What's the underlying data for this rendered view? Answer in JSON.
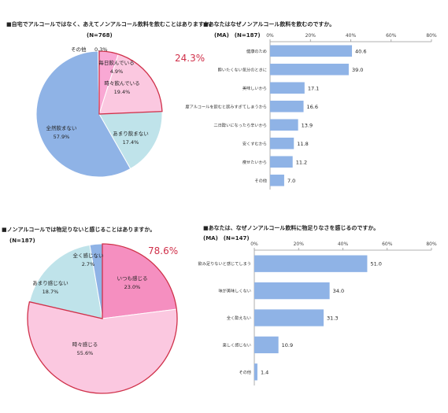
{
  "chart_data": [
    {
      "type": "pie",
      "title": "■自宅でアルコールではなく、あえてノンアルコール飲料を飲むことはありますか。",
      "n_label": "(N=768)",
      "highlight_label": "24.3%",
      "slices": [
        {
          "label": "毎日飲んでいる",
          "value": 4.9,
          "value_label": "4.9%",
          "color": "#f9a8d4"
        },
        {
          "label": "時々飲んでいる",
          "value": 19.4,
          "value_label": "19.4%",
          "color": "#fbc8e0"
        },
        {
          "label": "あまり飲まない",
          "value": 17.4,
          "value_label": "17.4%",
          "color": "#bfe3ea"
        },
        {
          "label": "全然飲まない",
          "value": 57.9,
          "value_label": "57.9%",
          "color": "#8fb3e6"
        },
        {
          "label": "その他",
          "value": 0.3,
          "value_label": "0.3%",
          "color": "#a8a8d8"
        }
      ]
    },
    {
      "type": "bar",
      "orientation": "horizontal",
      "title": "■あなたはなぜノンアルコール飲料を飲むのですか。",
      "subtitle": "(MA)　(N=187)",
      "xlim": [
        0,
        80
      ],
      "ticks": [
        "0%",
        "20%",
        "40%",
        "60%",
        "80%"
      ],
      "tick_values": [
        0,
        20,
        40,
        60,
        80
      ],
      "categories": [
        "健康のため",
        "酔いたくない気分のときに",
        "美味しいから",
        "度アルコールを飲むと飲みすぎてしまうから",
        "二日酔いになったら辛いから",
        "安くすむから",
        "痩せたいから",
        "その他"
      ],
      "values": [
        40.6,
        39.0,
        17.1,
        16.6,
        13.9,
        11.8,
        11.2,
        7.0
      ],
      "value_labels": [
        "40.6",
        "39.0",
        "17.1",
        "16.6",
        "13.9",
        "11.8",
        "11.2",
        "7.0"
      ],
      "color": "#8fb3e6"
    },
    {
      "type": "pie",
      "title": "■ノンアルコールでは物足りないと感じることはありますか。",
      "n_label": "(N=187)",
      "highlight_label": "78.6%",
      "slices": [
        {
          "label": "いつも感じる",
          "value": 23.0,
          "value_label": "23.0%",
          "color": "#f58fc0"
        },
        {
          "label": "時々感じる",
          "value": 55.6,
          "value_label": "55.6%",
          "color": "#fbc8e0"
        },
        {
          "label": "あまり感じない",
          "value": 18.7,
          "value_label": "18.7%",
          "color": "#bfe3ea"
        },
        {
          "label": "全く感じない",
          "value": 2.7,
          "value_label": "2.7%",
          "color": "#8fb3e6"
        }
      ]
    },
    {
      "type": "bar",
      "orientation": "horizontal",
      "title": "■あなたは、なぜノンアルコール飲料に物足りなさを感じるのですか。",
      "subtitle": "(MA)　(N=147)",
      "xlim": [
        0,
        80
      ],
      "ticks": [
        "0%",
        "20%",
        "40%",
        "60%",
        "80%"
      ],
      "tick_values": [
        0,
        20,
        40,
        60,
        80
      ],
      "categories": [
        "飲み足りないと感じてしまう",
        "味が美味しくない",
        "全く酔えない",
        "楽しく感じない",
        "その他"
      ],
      "values": [
        51.0,
        34.0,
        31.3,
        10.9,
        1.4
      ],
      "value_labels": [
        "51.0",
        "34.0",
        "31.3",
        "10.9",
        "1.4"
      ],
      "color": "#8fb3e6"
    }
  ]
}
